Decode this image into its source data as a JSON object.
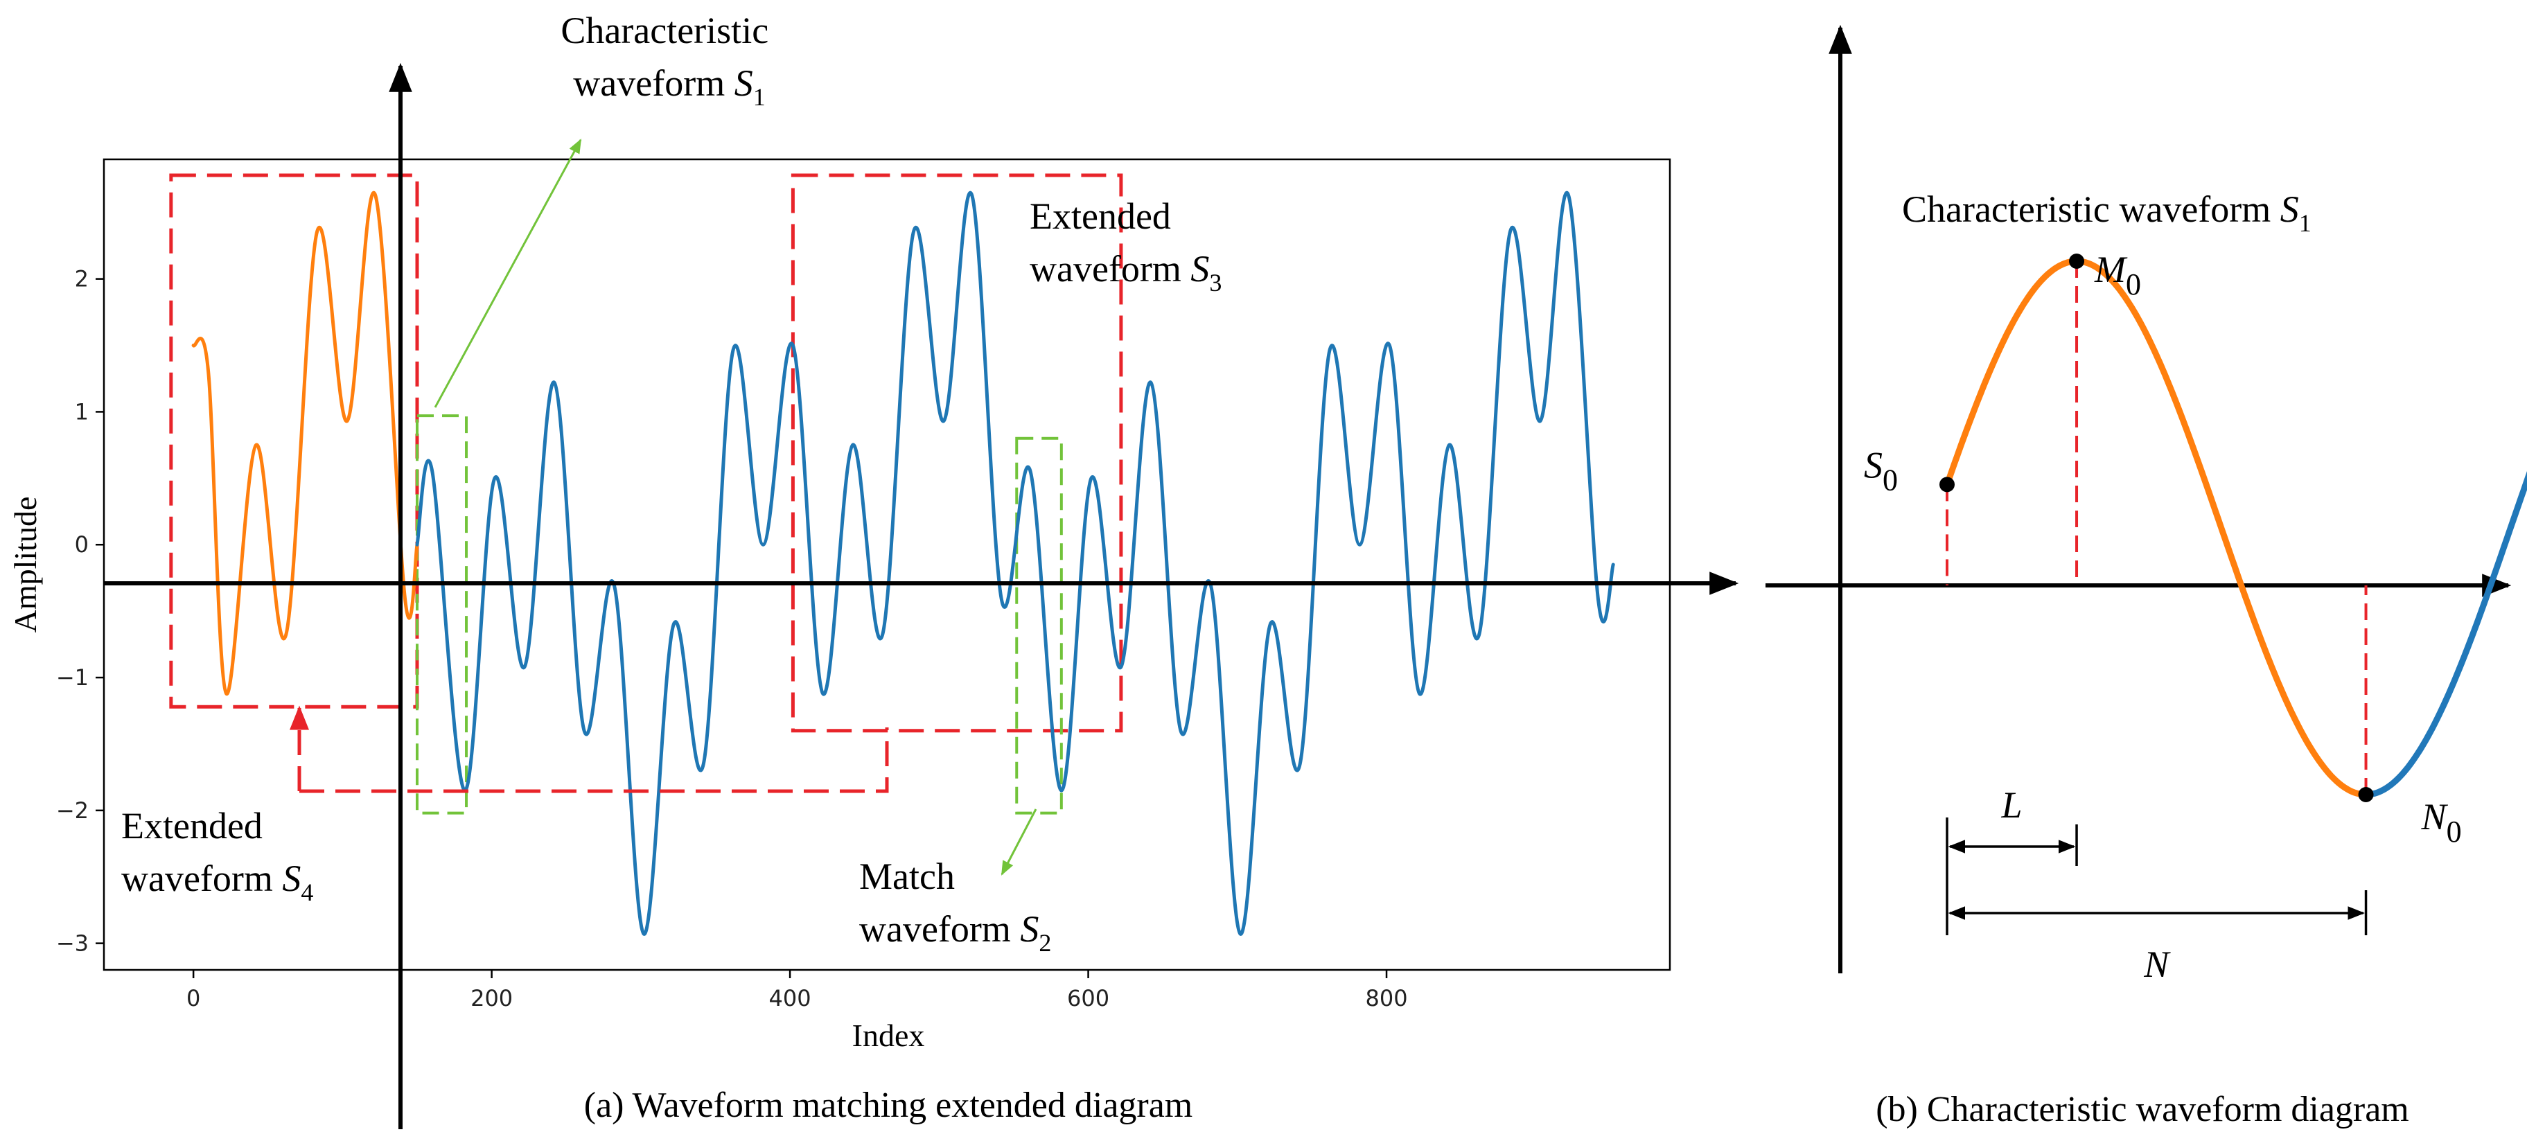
{
  "chart_data": [
    {
      "type": "line",
      "caption": "(a) Waveform matching extended diagram",
      "xlabel": "Index",
      "ylabel": "Amplitude",
      "xlim": [
        -60,
        990
      ],
      "ylim": [
        -3.2,
        2.9
      ],
      "xticks": [
        {
          "value": 0,
          "label": "0"
        },
        {
          "value": 200,
          "label": "200"
        },
        {
          "value": 400,
          "label": "400"
        },
        {
          "value": 600,
          "label": "600"
        },
        {
          "value": 800,
          "label": "800"
        }
      ],
      "yticks": [
        {
          "value": 2,
          "label": "2"
        },
        {
          "value": 1,
          "label": "1"
        },
        {
          "value": 0,
          "label": "0"
        },
        {
          "value": -1,
          "label": "−1"
        },
        {
          "value": -2,
          "label": "−2"
        },
        {
          "value": -3,
          "label": "−3"
        }
      ],
      "series": [
        {
          "name": "Extended waveform (orange)",
          "color": "#ff7f0e",
          "points": [
            [
              0,
              1.5
            ],
            [
              10,
              1.3
            ],
            [
              22,
              -1.12
            ],
            [
              42,
              0.75
            ],
            [
              62,
              -0.68
            ],
            [
              83,
              2.36
            ],
            [
              103,
              0.93
            ],
            [
              122,
              2.63
            ],
            [
              142,
              -0.42
            ],
            [
              150,
              0.0
            ]
          ]
        },
        {
          "name": "Original waveform (blue)",
          "color": "#1f77b4",
          "points": [
            [
              150,
              0.0
            ],
            [
              160,
              0.56
            ],
            [
              182,
              -1.85
            ],
            [
              202,
              0.5
            ],
            [
              222,
              -0.92
            ],
            [
              242,
              1.22
            ],
            [
              262,
              -1.4
            ],
            [
              282,
              -0.3
            ],
            [
              302,
              -2.93
            ],
            [
              322,
              -0.6
            ],
            [
              342,
              -1.65
            ],
            [
              362,
              1.47
            ],
            [
              382,
              0.0
            ],
            [
              402,
              1.5
            ],
            [
              422,
              -1.12
            ],
            [
              442,
              0.75
            ],
            [
              462,
              -0.68
            ],
            [
              483,
              2.36
            ],
            [
              503,
              0.93
            ],
            [
              522,
              2.63
            ],
            [
              542,
              -0.42
            ],
            [
              561,
              0.56
            ],
            [
              582,
              -1.85
            ],
            [
              602,
              0.5
            ],
            [
              622,
              -0.92
            ],
            [
              642,
              1.22
            ],
            [
              662,
              -1.4
            ],
            [
              682,
              -0.3
            ],
            [
              702,
              -2.93
            ],
            [
              722,
              -0.6
            ],
            [
              742,
              -1.65
            ],
            [
              762,
              1.47
            ],
            [
              782,
              0.0
            ],
            [
              802,
              1.5
            ],
            [
              822,
              -1.12
            ],
            [
              842,
              0.75
            ],
            [
              862,
              -0.68
            ],
            [
              883,
              2.36
            ],
            [
              903,
              0.93
            ],
            [
              922,
              2.63
            ],
            [
              942,
              -0.42
            ],
            [
              952,
              -0.15
            ]
          ]
        }
      ],
      "boxes": [
        {
          "name": "extended-s4-box",
          "color": "#e8242a",
          "style": "dashed",
          "range": [
            [
              -15,
              150
            ],
            [
              -1.22,
              2.78
            ]
          ]
        },
        {
          "name": "extended-s3-box",
          "color": "#e8242a",
          "style": "dashed",
          "range": [
            [
              402,
              622
            ],
            [
              -1.4,
              2.78
            ]
          ]
        },
        {
          "name": "characteristic-s1-box",
          "color": "#72c33a",
          "style": "dashed",
          "range": [
            [
              150,
              183
            ],
            [
              -2.02,
              0.97
            ]
          ]
        },
        {
          "name": "match-s2-box",
          "color": "#72c33a",
          "style": "dashed",
          "range": [
            [
              552,
              582
            ],
            [
              -2.02,
              0.8
            ]
          ]
        }
      ],
      "annotations": [
        {
          "name": "characteristic-s1-label",
          "lines": [
            {
              "text": "Characteristic"
            },
            {
              "text": "waveform ",
              "symbol": "S",
              "sub": "1"
            }
          ]
        },
        {
          "name": "extended-s3-label",
          "lines": [
            {
              "text": "Extended"
            },
            {
              "text": "waveform ",
              "symbol": "S",
              "sub": "3"
            }
          ]
        },
        {
          "name": "extended-s4-label",
          "lines": [
            {
              "text": "Extended"
            },
            {
              "text": "waveform ",
              "symbol": "S",
              "sub": "4"
            }
          ]
        },
        {
          "name": "match-s2-label",
          "lines": [
            {
              "text": "Match"
            },
            {
              "text": "waveform ",
              "symbol": "S",
              "sub": "2"
            }
          ]
        }
      ]
    },
    {
      "type": "line",
      "caption": "(b) Characteristic waveform diagram",
      "title": {
        "text": "Characteristic waveform ",
        "symbol": "S",
        "sub": "1"
      },
      "series": [
        {
          "name": "Characteristic segment (orange)",
          "color": "#ff7f0e",
          "x": [
            0.0,
            1.81
          ],
          "y_start": 0.28,
          "y_peak": 1.0,
          "y_trough": -1.0
        },
        {
          "name": "Continuation (blue)",
          "color": "#2178b9",
          "x": [
            1.81,
            2.78
          ]
        }
      ],
      "points": [
        {
          "name": "S0",
          "symbol": "S",
          "sub": "0",
          "x": 0.0,
          "y": 0.28
        },
        {
          "name": "M0",
          "symbol": "M",
          "sub": "0",
          "x": 0.56,
          "y": 1.0
        },
        {
          "name": "N0",
          "symbol": "N",
          "sub": "0",
          "x": 1.81,
          "y": -1.0
        }
      ],
      "intervals": [
        {
          "name": "L",
          "label": "L",
          "from": "S0",
          "to": "M0"
        },
        {
          "name": "N",
          "label": "N",
          "from": "S0",
          "to": "N0"
        }
      ]
    }
  ]
}
